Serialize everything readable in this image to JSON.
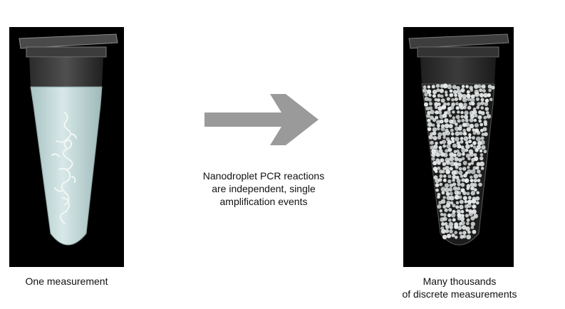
{
  "left_tube": {
    "caption": "One measurement",
    "liquid_color": "#cfe3e3",
    "dna_color": "#f2f6f6"
  },
  "right_tube": {
    "caption_lines": [
      "Many thousands",
      "of discrete measurements"
    ],
    "droplet_color": "#e6eaea"
  },
  "arrow": {
    "color": "#9a9a9a"
  },
  "description": {
    "lines": [
      "Nanodroplet PCR reactions",
      "are independent, single",
      "amplification events"
    ]
  }
}
